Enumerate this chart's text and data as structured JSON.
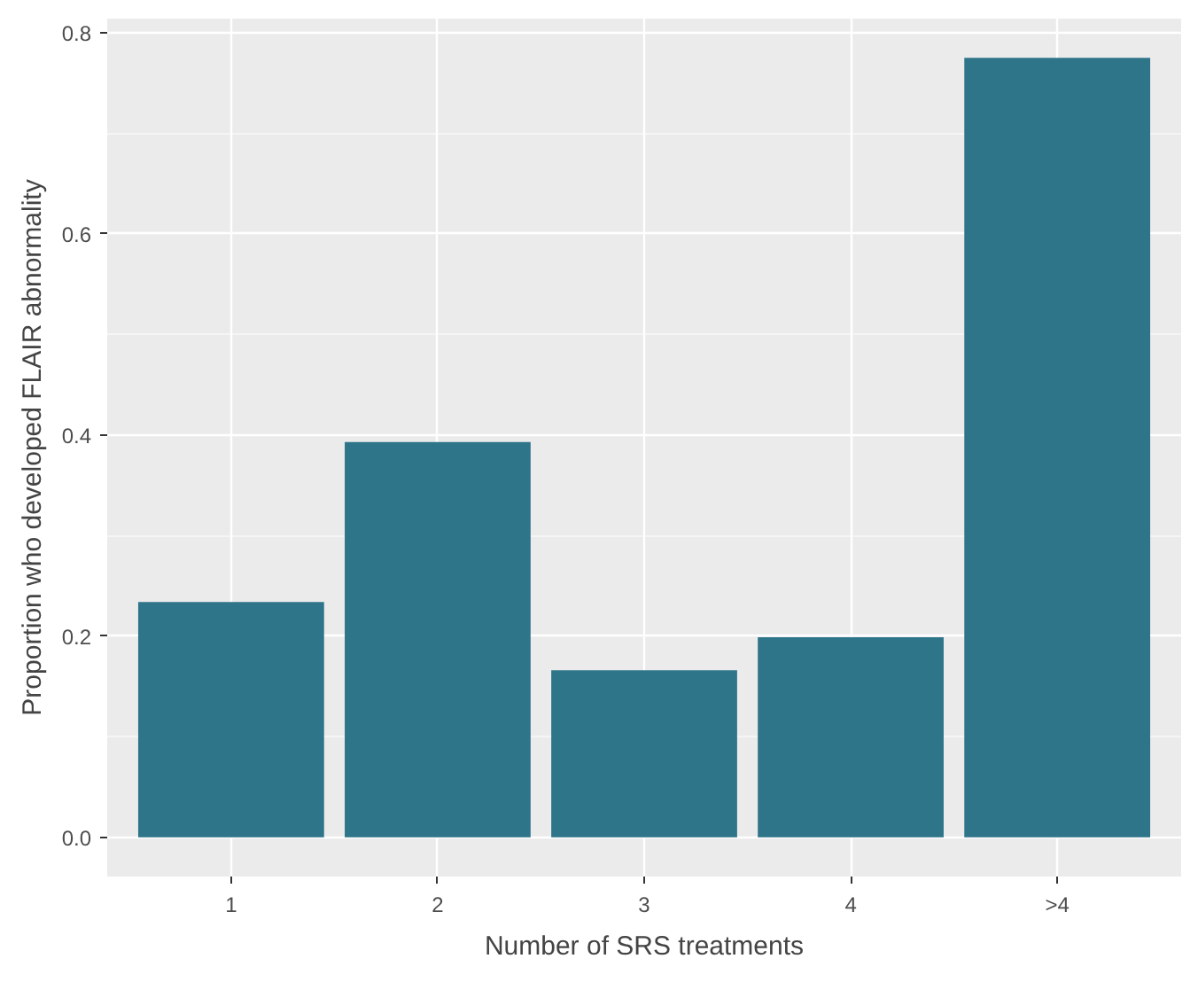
{
  "chart_data": {
    "type": "bar",
    "xlabel": "Number of SRS treatments",
    "ylabel": "Proportion who developed FLAIR abnormality",
    "categories": [
      "1",
      "2",
      "3",
      "4",
      ">4"
    ],
    "values": [
      0.234,
      0.393,
      0.166,
      0.199,
      0.775
    ],
    "color": "#2e758a",
    "ylim": [
      -0.039,
      0.814
    ],
    "yticks": [
      {
        "value": 0,
        "label": "0.0"
      },
      0.2,
      0.4,
      0.6,
      0.8
    ],
    "grid": true
  }
}
